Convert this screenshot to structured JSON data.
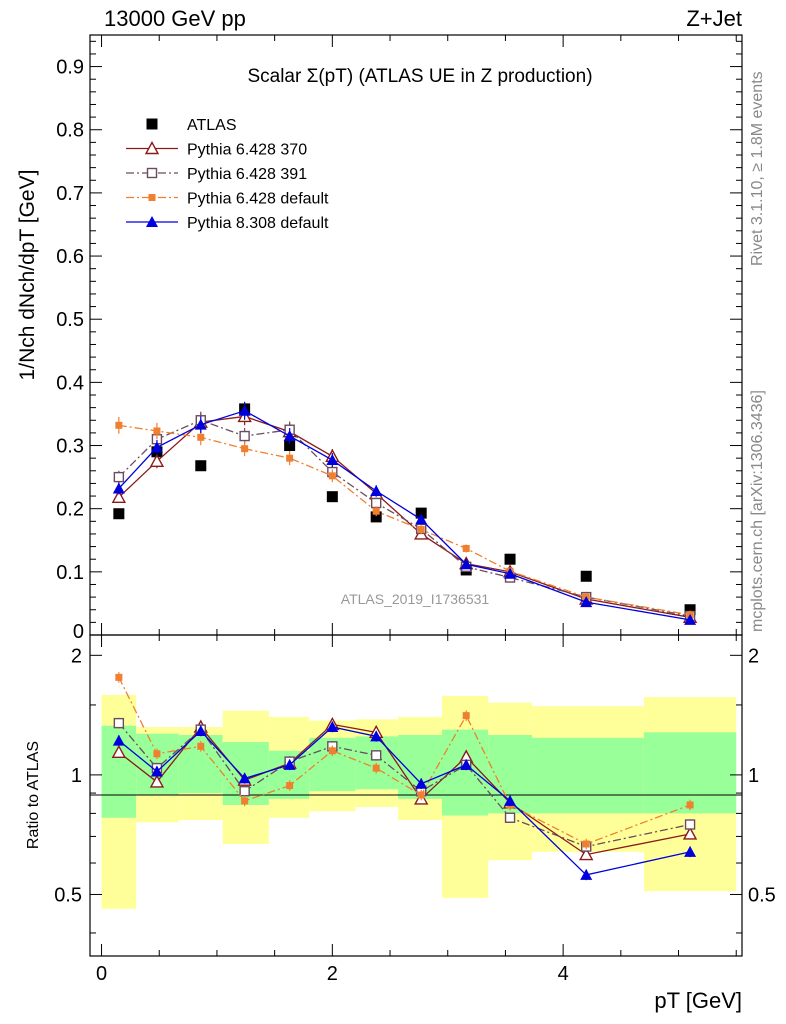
{
  "header": {
    "left": "13000 GeV pp",
    "right": "Z+Jet"
  },
  "side_labels": {
    "rivet": "Rivet 3.1.10, ≥ 1.8M events",
    "mcplots": "mcplots.cern.ch [arXiv:1306.3436]"
  },
  "chart_data": [
    {
      "type": "scatter",
      "title": "Scalar Σ(pT) (ATLAS UE in Z production)",
      "ylabel": "1/Nch dNch/dpT [GeV]",
      "xlim": [
        -0.1,
        5.55
      ],
      "ylim": [
        0,
        0.95
      ],
      "yticks": [
        0.1,
        0.2,
        0.3,
        0.4,
        0.5,
        0.6,
        0.7,
        0.8,
        0.9
      ],
      "ytick_labels": [
        "0.1",
        "0.2",
        "0.3",
        "0.4",
        "0.5",
        "0.6",
        "0.7",
        "0.8",
        "0.9"
      ],
      "watermark": "ATLAS_2019_I1736531",
      "legend_position": "top-left",
      "x": [
        0.15,
        0.48,
        0.86,
        1.24,
        1.63,
        2.0,
        2.38,
        2.77,
        3.16,
        3.54,
        4.2,
        5.1
      ],
      "series": [
        {
          "name": "ATLAS",
          "color": "#000000",
          "marker": "square-filled",
          "line": "none",
          "values": [
            0.192,
            0.29,
            0.268,
            0.358,
            0.3,
            0.219,
            0.187,
            0.193,
            0.103,
            0.12,
            0.093,
            0.04
          ]
        },
        {
          "name": "Pythia 6.428 370",
          "color": "#8b1a1a",
          "marker": "triangle-open",
          "line": "solid",
          "values": [
            0.218,
            0.275,
            0.337,
            0.346,
            0.322,
            0.283,
            0.224,
            0.16,
            0.113,
            0.1,
            0.057,
            0.028
          ]
        },
        {
          "name": "Pythia 6.428 391",
          "color": "#6b4c5e",
          "marker": "square-open",
          "line": "dashdot",
          "values": [
            0.25,
            0.31,
            0.34,
            0.315,
            0.325,
            0.258,
            0.209,
            0.168,
            0.108,
            0.091,
            0.06,
            0.03
          ]
        },
        {
          "name": "Pythia 6.428 default",
          "color": "#f08030",
          "marker": "square-small",
          "line": "dashdot",
          "values": [
            0.332,
            0.323,
            0.313,
            0.295,
            0.28,
            0.252,
            0.196,
            0.167,
            0.137,
            0.101,
            0.06,
            0.032
          ]
        },
        {
          "name": "Pythia 8.308 default",
          "color": "#0000dd",
          "marker": "triangle-filled",
          "line": "solid",
          "values": [
            0.232,
            0.297,
            0.333,
            0.355,
            0.315,
            0.277,
            0.228,
            0.183,
            0.112,
            0.097,
            0.052,
            0.024
          ]
        }
      ]
    },
    {
      "type": "scatter",
      "ylabel": "Ratio to ATLAS",
      "xlabel": "pT [GeV]",
      "xlim": [
        -0.1,
        5.55
      ],
      "ylim": [
        0.35,
        2.25
      ],
      "log_y": true,
      "xticks": [
        0,
        2,
        4
      ],
      "xtick_labels": [
        "0",
        "2",
        "4"
      ],
      "yticks": [
        0.5,
        1,
        2
      ],
      "ytick_labels": [
        "0.5",
        "1",
        "2"
      ],
      "bands": {
        "edges": [
          0.0,
          0.3,
          0.67,
          1.05,
          1.45,
          1.8,
          2.2,
          2.57,
          2.95,
          3.35,
          3.73,
          4.7,
          5.5
        ],
        "green_lo": [
          0.78,
          0.89,
          0.9,
          0.84,
          0.87,
          0.91,
          0.92,
          0.87,
          0.79,
          0.8,
          0.8,
          0.8
        ],
        "green_hi": [
          1.33,
          1.27,
          1.26,
          1.21,
          1.15,
          1.24,
          1.25,
          1.26,
          1.3,
          1.26,
          1.24,
          1.28
        ],
        "yellow_lo": [
          0.46,
          0.76,
          0.77,
          0.67,
          0.78,
          0.81,
          0.83,
          0.77,
          0.49,
          0.61,
          0.64,
          0.51
        ],
        "yellow_hi": [
          1.59,
          1.32,
          1.32,
          1.45,
          1.4,
          1.37,
          1.38,
          1.4,
          1.58,
          1.52,
          1.49,
          1.57
        ]
      },
      "x": [
        0.15,
        0.48,
        0.86,
        1.24,
        1.63,
        2.0,
        2.38,
        2.77,
        3.16,
        3.54,
        4.2,
        5.1
      ],
      "series": [
        {
          "name": "Pythia 6.428 370",
          "color": "#8b1a1a",
          "marker": "triangle-open",
          "line": "solid",
          "values": [
            1.14,
            0.96,
            1.32,
            0.97,
            1.07,
            1.34,
            1.28,
            0.87,
            1.11,
            0.85,
            0.63,
            0.71
          ]
        },
        {
          "name": "Pythia 6.428 391",
          "color": "#6b4c5e",
          "marker": "square-open",
          "line": "dashdot",
          "values": [
            1.35,
            1.04,
            1.3,
            0.91,
            1.08,
            1.18,
            1.12,
            0.91,
            1.06,
            0.78,
            0.66,
            0.75
          ]
        },
        {
          "name": "Pythia 6.428 default",
          "color": "#f08030",
          "marker": "square-small",
          "line": "dashdot",
          "values": [
            1.76,
            1.13,
            1.18,
            0.86,
            0.94,
            1.15,
            1.04,
            0.89,
            1.41,
            0.84,
            0.67,
            0.84
          ]
        },
        {
          "name": "Pythia 8.308 default",
          "color": "#0000dd",
          "marker": "triangle-filled",
          "line": "solid",
          "values": [
            1.22,
            1.02,
            1.29,
            0.98,
            1.06,
            1.32,
            1.25,
            0.95,
            1.06,
            0.86,
            0.56,
            0.64
          ]
        }
      ]
    }
  ]
}
